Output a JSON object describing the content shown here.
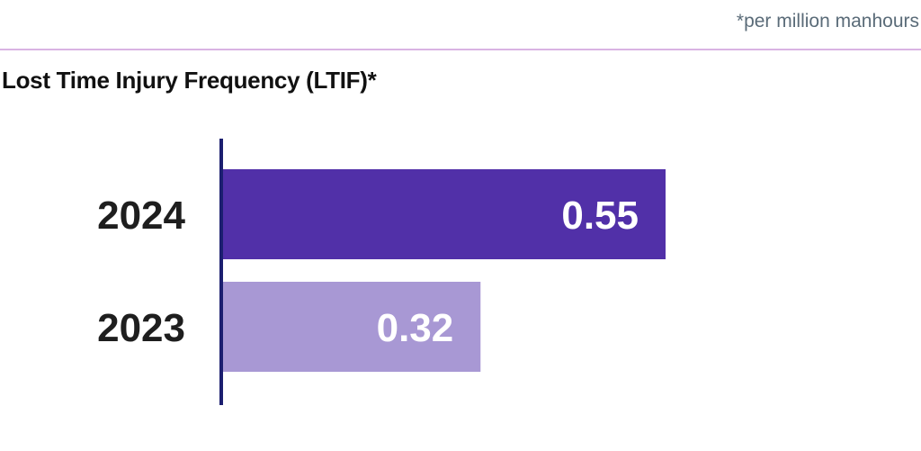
{
  "footnote": "*per million manhours",
  "colors": {
    "bar_current": "#5130a8",
    "bar_previous": "#a898d4",
    "axis": "#1c1f70",
    "rule": "#d9b3e3"
  },
  "chart_data": {
    "type": "bar",
    "orientation": "horizontal",
    "title": "Lost Time Injury Frequency (LTIF)*",
    "categories": [
      "2024",
      "2023"
    ],
    "values": [
      0.55,
      0.32
    ],
    "value_labels": [
      "0.55",
      "0.32"
    ],
    "xlim": [
      0,
      0.7
    ],
    "grid": false,
    "legend": "none"
  }
}
